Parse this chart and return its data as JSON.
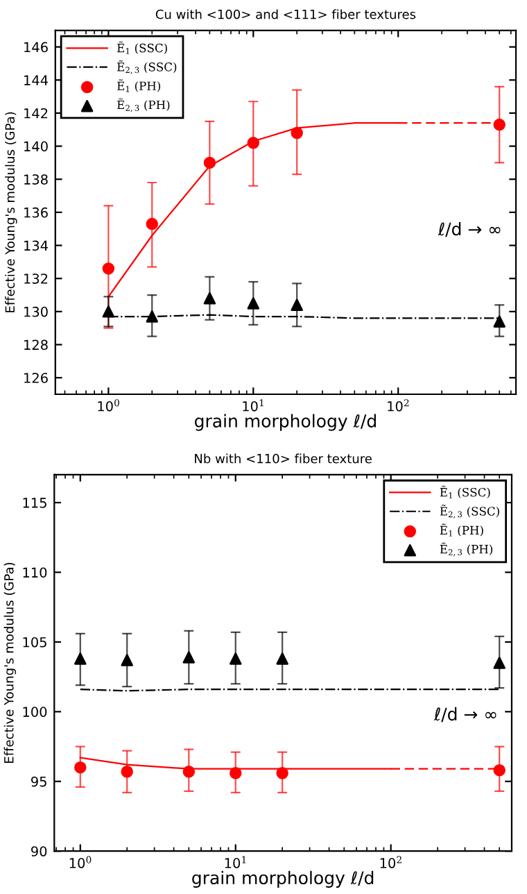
{
  "chart_data": [
    {
      "type": "line",
      "title": "Cu with <100> and <111> fiber textures",
      "xlabel": "grain morphology ℓ/d",
      "ylabel": "Effective Young's modulus (GPa)",
      "log": "x",
      "xlim": [
        0.43,
        650
      ],
      "ylim": [
        125,
        147
      ],
      "xticks": [
        {
          "value": 1,
          "label": "10$^{0}$"
        },
        {
          "value": 10,
          "label": "10$^{1}$"
        },
        {
          "value": 100,
          "label": "10$^{2}$"
        }
      ],
      "yticks": [
        126,
        128,
        130,
        132,
        134,
        136,
        138,
        140,
        142,
        144,
        146
      ],
      "legend": "top left",
      "annotations": [
        "ℓ/d → ∞"
      ],
      "series": [
        {
          "name": "Ẽ$_{1}$ (SSC)",
          "type": "line",
          "line_style": "solid",
          "marker": "none",
          "color": "#ff0000",
          "x": [
            1,
            2,
            5,
            10,
            20,
            50,
            100
          ],
          "values": [
            130.9,
            134.6,
            138.8,
            140.3,
            141.1,
            141.4,
            141.4
          ]
        },
        {
          "type": "line",
          "line_style": "dashed",
          "marker": "none",
          "color": "#ff0000",
          "x": [
            100,
            500
          ],
          "values": [
            141.4,
            141.4
          ]
        },
        {
          "name": "Ẽ$_{2,3}$ (SSC)",
          "type": "line",
          "line_style": "dashdot",
          "marker": "none",
          "color": "#000000",
          "x": [
            1,
            2,
            5,
            10,
            20,
            50,
            100,
            500
          ],
          "values": [
            129.7,
            129.7,
            129.8,
            129.7,
            129.7,
            129.6,
            129.6,
            129.6
          ]
        },
        {
          "name": "Ẽ$_{1}$ (PH)",
          "type": "scatter",
          "marker": "circle",
          "color": "#ff0000",
          "x": [
            1,
            2,
            5,
            10,
            20,
            500
          ],
          "values": [
            132.6,
            135.3,
            139.0,
            140.2,
            140.8,
            141.3
          ],
          "errors": [
            [
              129.0,
              136.4
            ],
            [
              132.7,
              137.8
            ],
            [
              136.5,
              141.5
            ],
            [
              137.6,
              142.7
            ],
            [
              138.3,
              143.4
            ],
            [
              139.0,
              143.6
            ]
          ]
        },
        {
          "name": "Ẽ$_{2,3}$ (PH)",
          "type": "scatter",
          "marker": "triangle",
          "color": "#000000",
          "x": [
            1,
            2,
            5,
            10,
            20,
            500
          ],
          "values": [
            130.0,
            129.7,
            130.8,
            130.5,
            130.4,
            129.4
          ],
          "errors": [
            [
              129.1,
              130.9
            ],
            [
              128.5,
              131.0
            ],
            [
              129.5,
              132.1
            ],
            [
              129.2,
              131.8
            ],
            [
              129.1,
              131.7
            ],
            [
              128.5,
              130.4
            ]
          ]
        }
      ]
    },
    {
      "type": "line",
      "title": "Nb with <110> fiber texture",
      "xlabel": "grain morphology ℓ/d",
      "ylabel": "Effective Young's modulus (GPa)",
      "log": "x",
      "xlim": [
        0.68,
        600
      ],
      "ylim": [
        90,
        117
      ],
      "xticks": [
        {
          "value": 1,
          "label": "10$^{0}$"
        },
        {
          "value": 10,
          "label": "10$^{1}$"
        },
        {
          "value": 100,
          "label": "10$^{2}$"
        }
      ],
      "yticks": [
        90,
        95,
        100,
        105,
        110,
        115
      ],
      "legend": "top right",
      "annotations": [
        "ℓ/d → ∞"
      ],
      "series": [
        {
          "name": "Ẽ$_{1}$ (SSC)",
          "type": "line",
          "line_style": "solid",
          "marker": "none",
          "color": "#ff0000",
          "x": [
            1,
            2,
            5,
            10,
            20,
            50,
            100
          ],
          "values": [
            96.7,
            96.2,
            95.9,
            95.9,
            95.9,
            95.9,
            95.9
          ]
        },
        {
          "type": "line",
          "line_style": "dashed",
          "marker": "none",
          "color": "#ff0000",
          "x": [
            100,
            500
          ],
          "values": [
            95.9,
            95.9
          ]
        },
        {
          "name": "Ẽ$_{2,3}$ (SSC)",
          "type": "line",
          "line_style": "dashdot",
          "marker": "none",
          "color": "#000000",
          "x": [
            1,
            2,
            5,
            10,
            20,
            50,
            100,
            500
          ],
          "values": [
            101.6,
            101.5,
            101.6,
            101.6,
            101.6,
            101.6,
            101.6,
            101.6
          ]
        },
        {
          "name": "Ẽ$_{1}$ (PH)",
          "type": "scatter",
          "marker": "circle",
          "color": "#ff0000",
          "x": [
            1,
            2,
            5,
            10,
            20,
            500
          ],
          "values": [
            96.0,
            95.7,
            95.7,
            95.6,
            95.6,
            95.8
          ],
          "errors": [
            [
              94.6,
              97.5
            ],
            [
              94.2,
              97.2
            ],
            [
              94.3,
              97.3
            ],
            [
              94.2,
              97.1
            ],
            [
              94.2,
              97.1
            ],
            [
              94.3,
              97.5
            ]
          ]
        },
        {
          "name": "Ẽ$_{2,3}$ (PH)",
          "type": "scatter",
          "marker": "triangle",
          "color": "#000000",
          "x": [
            1,
            2,
            5,
            10,
            20,
            500
          ],
          "values": [
            103.8,
            103.7,
            103.9,
            103.8,
            103.8,
            103.5
          ],
          "errors": [
            [
              101.9,
              105.6
            ],
            [
              101.8,
              105.6
            ],
            [
              102.0,
              105.8
            ],
            [
              102.0,
              105.7
            ],
            [
              102.0,
              105.7
            ],
            [
              101.7,
              105.4
            ]
          ]
        }
      ]
    }
  ]
}
